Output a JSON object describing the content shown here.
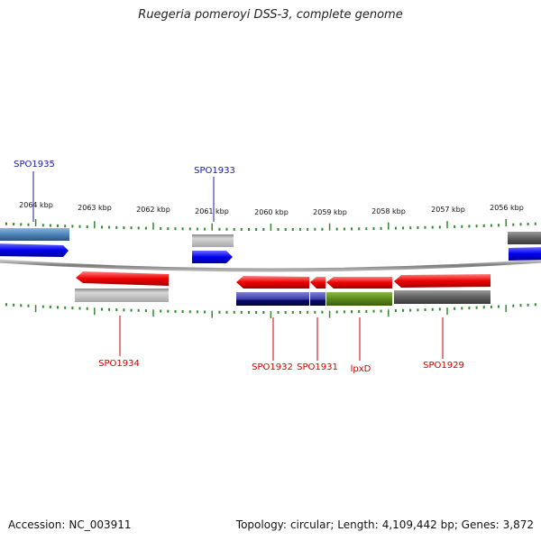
{
  "title": "Ruegeria pomeroyi DSS-3, complete genome",
  "footer": {
    "accession_label": "Accession:",
    "accession": "NC_003911",
    "topology_label": "Topology:",
    "topology": "circular",
    "length_label": "Length:",
    "length": "4,109,442 bp",
    "genes_label": "Genes:",
    "genes": "3,872"
  },
  "scale": {
    "unit": "kbp",
    "tick_labels": [
      "2064 kbp",
      "2063 kbp",
      "2062 kbp",
      "2061 kbp",
      "2060 kbp",
      "2059 kbp",
      "2058 kbp",
      "2057 kbp",
      "2056 kbp"
    ]
  },
  "colors": {
    "forward_strand_label": "#1a1aa0",
    "reverse_strand_label": "#cc0000",
    "tick": "#2e8b2e",
    "backbone": "#8a8a8a"
  },
  "genes": [
    {
      "label": "SPO1935",
      "strand": "forward",
      "color": "#0000ee",
      "shading": "#4a7fb5"
    },
    {
      "label": "SPO1933",
      "strand": "forward",
      "color": "#0000ee",
      "shading": "#b0b0b0"
    },
    {
      "label": "",
      "strand": "forward",
      "color": "#0000ee",
      "shading": "#606060"
    },
    {
      "label": "SPO1934",
      "strand": "reverse",
      "color": "#ee0000",
      "shading": "#b8b8b8"
    },
    {
      "label": "SPO1932",
      "strand": "reverse",
      "color": "#ee0000",
      "shading": "#3a3aa8"
    },
    {
      "label": "SPO1931",
      "strand": "reverse",
      "color": "#ee0000",
      "shading": "#3a3aa8"
    },
    {
      "label": "lpxD",
      "strand": "reverse",
      "color": "#ee0000",
      "shading": "#5a8a1a"
    },
    {
      "label": "SPO1929",
      "strand": "reverse",
      "color": "#ee0000",
      "shading": "#5f5f5f"
    }
  ]
}
